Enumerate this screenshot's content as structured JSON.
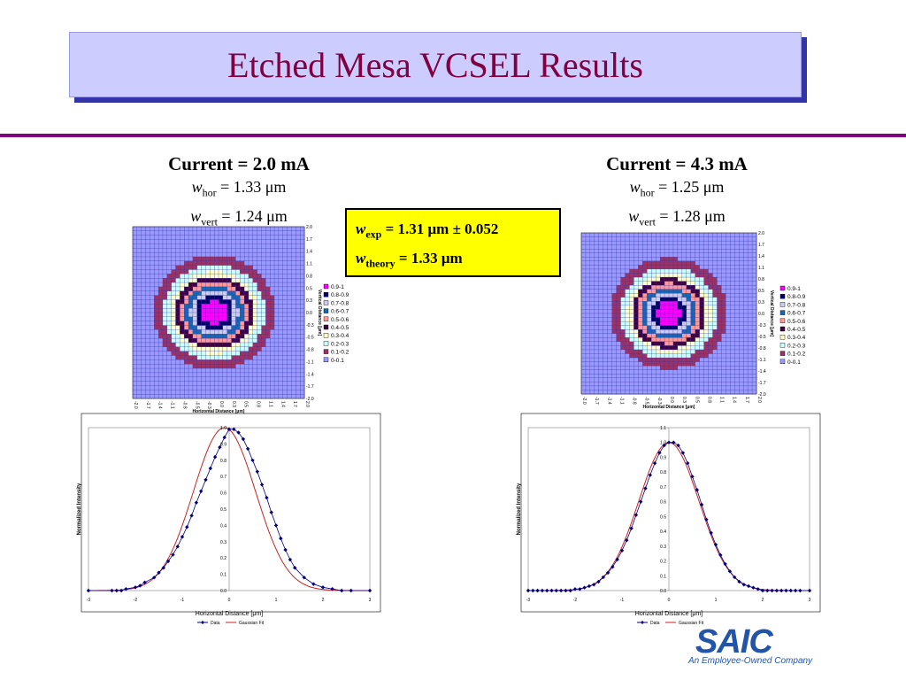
{
  "slide": {
    "title": "Etched Mesa VCSEL Results",
    "left": {
      "current": "Current = 2.0 mA",
      "w_hor": "= 1.33 μm",
      "w_vert": "= 1.24 μm"
    },
    "right": {
      "current": "Current = 4.3 mA",
      "w_hor": "= 1.25 μm",
      "w_vert": "= 1.28 μm"
    },
    "symbols": {
      "w": "w",
      "hor": "hor",
      "vert": "vert"
    },
    "box": {
      "w": "w",
      "exp_sub": "exp",
      "exp_value": "= 1.31 μm ± 0.052",
      "theory_sub": "theory",
      "theory_value": "= 1.33 μm",
      "color": "#ffff00"
    },
    "logo": {
      "name": "SAIC",
      "tagline": "An Employee-Owned Company",
      "color": "#2255aa"
    }
  },
  "chart_data": [
    {
      "type": "heatmap",
      "xlabel": "Horizontal Distance [μm]",
      "ylabel": "Vertical Distance [μm]",
      "x_ticks": [
        "-2.0",
        "-1.7",
        "-1.4",
        "-1.1",
        "-0.8",
        "-0.5",
        "-0.3",
        "0.0",
        "0.3",
        "0.5",
        "0.8",
        "1.1",
        "1.4",
        "1.7",
        "2.0"
      ],
      "y_ticks": [
        "2.0",
        "1.7",
        "1.4",
        "1.1",
        "0.8",
        "0.5",
        "0.3",
        "0.0",
        "-0.3",
        "-0.5",
        "-0.8",
        "-1.1",
        "-1.4",
        "-1.7",
        "-2.0"
      ],
      "legend": [
        "0.9-1",
        "0.8-0.9",
        "0.7-0.8",
        "0.6-0.7",
        "0.5-0.6",
        "0.4-0.5",
        "0.3-0.4",
        "0.2-0.3",
        "0.1-0.2",
        "0-0.1"
      ],
      "colors": [
        "#ff00ff",
        "#000066",
        "#ccccee",
        "#1a66b3",
        "#ff9999",
        "#400040",
        "#ffffcc",
        "#ccffff",
        "#993366",
        "#9999ff"
      ],
      "center": [
        -0.1,
        0.0
      ],
      "sigma_x": 0.665,
      "sigma_y": 0.62
    },
    {
      "type": "heatmap",
      "xlabel": "Horizontal Distance [μm]",
      "ylabel": "Vertical Distance [μm]",
      "x_ticks": [
        "-2.0",
        "-1.7",
        "-1.4",
        "-1.1",
        "-0.8",
        "-0.5",
        "-0.3",
        "0.0",
        "0.3",
        "0.5",
        "0.8",
        "1.1",
        "1.4",
        "1.7",
        "2.0"
      ],
      "y_ticks": [
        "2.0",
        "1.7",
        "1.4",
        "1.1",
        "0.8",
        "0.5",
        "0.3",
        "0.0",
        "-0.3",
        "-0.5",
        "-0.8",
        "-1.1",
        "-1.4",
        "-1.7",
        "-2.0"
      ],
      "legend": [
        "0.9-1",
        "0.8-0.9",
        "0.7-0.8",
        "0.6-0.7",
        "0.5-0.6",
        "0.4-0.5",
        "0.3-0.4",
        "0.2-0.3",
        "0.1-0.2",
        "0-0.1"
      ],
      "colors": [
        "#ff00ff",
        "#000066",
        "#ccccee",
        "#1a66b3",
        "#ff9999",
        "#400040",
        "#ffffcc",
        "#ccffff",
        "#993366",
        "#9999ff"
      ],
      "center": [
        0.0,
        0.0
      ],
      "sigma_x": 0.625,
      "sigma_y": 0.64
    },
    {
      "type": "line",
      "xlabel": "Horizontal Distance [μm]",
      "ylabel": "Normalized Intensity",
      "xlim": [
        -3,
        3
      ],
      "ylim": [
        0,
        1.0
      ],
      "x_ticks": [
        -3,
        -2,
        -1,
        0,
        1,
        2,
        3
      ],
      "y_ticks": [
        "0.0",
        "0.1",
        "0.2",
        "0.3",
        "0.4",
        "0.5",
        "0.6",
        "0.7",
        "0.8",
        "0.9",
        "1.0"
      ],
      "legend": [
        "Data",
        "Gaussian Fit"
      ],
      "series": [
        {
          "name": "Data",
          "color": "#000080",
          "marker": "diamond",
          "x": [
            -3.0,
            -2.5,
            -2.4,
            -2.3,
            -2.2,
            -2.0,
            -1.9,
            -1.8,
            -1.6,
            -1.5,
            -1.4,
            -1.3,
            -1.2,
            -1.1,
            -1.0,
            -0.9,
            -0.8,
            -0.7,
            -0.6,
            -0.5,
            -0.4,
            -0.3,
            -0.2,
            -0.1,
            0.0,
            0.1,
            0.2,
            0.3,
            0.4,
            0.5,
            0.6,
            0.7,
            0.8,
            0.9,
            1.0,
            1.1,
            1.2,
            1.3,
            1.4,
            1.6,
            1.8,
            2.0,
            2.2,
            2.4,
            2.6,
            3.0
          ],
          "y": [
            0.0,
            0.0,
            0.0,
            0.0,
            0.01,
            0.02,
            0.03,
            0.05,
            0.08,
            0.11,
            0.14,
            0.18,
            0.22,
            0.27,
            0.33,
            0.39,
            0.46,
            0.54,
            0.61,
            0.68,
            0.75,
            0.82,
            0.88,
            0.94,
            0.99,
            0.99,
            0.97,
            0.93,
            0.87,
            0.8,
            0.73,
            0.65,
            0.57,
            0.48,
            0.4,
            0.32,
            0.25,
            0.19,
            0.14,
            0.08,
            0.04,
            0.02,
            0.01,
            0.0,
            0.0,
            0.0
          ]
        },
        {
          "name": "Gaussian Fit",
          "color": "#cc2222",
          "x0": -0.1,
          "sigma": 0.665,
          "amplitude": 1.0
        }
      ]
    },
    {
      "type": "line",
      "xlabel": "Horizontal Distance [μm]",
      "ylabel": "Normalized Intensity",
      "xlim": [
        -3,
        3
      ],
      "ylim": [
        0,
        1.1
      ],
      "x_ticks": [
        -3,
        -2,
        -1,
        0,
        1,
        2,
        3
      ],
      "y_ticks": [
        "0.0",
        "0.1",
        "0.2",
        "0.3",
        "0.4",
        "0.5",
        "0.6",
        "0.7",
        "0.8",
        "0.9",
        "1.0",
        "1.1"
      ],
      "legend": [
        "Data",
        "Gaussian Fit"
      ],
      "series": [
        {
          "name": "Data",
          "color": "#000080",
          "marker": "diamond",
          "x": [
            -3.0,
            -2.9,
            -2.8,
            -2.7,
            -2.6,
            -2.5,
            -2.4,
            -2.3,
            -2.2,
            -2.1,
            -2.0,
            -1.9,
            -1.8,
            -1.7,
            -1.6,
            -1.5,
            -1.4,
            -1.3,
            -1.2,
            -1.1,
            -1.0,
            -0.9,
            -0.8,
            -0.7,
            -0.6,
            -0.5,
            -0.4,
            -0.3,
            -0.2,
            -0.1,
            0.0,
            0.1,
            0.2,
            0.3,
            0.4,
            0.5,
            0.6,
            0.7,
            0.8,
            0.9,
            1.0,
            1.1,
            1.2,
            1.3,
            1.4,
            1.5,
            1.6,
            1.7,
            1.8,
            1.9,
            2.0,
            2.1,
            2.2,
            2.3,
            2.4,
            2.5,
            2.6,
            2.7,
            2.8,
            3.0
          ],
          "y": [
            0.0,
            0.0,
            0.0,
            0.0,
            0.0,
            0.0,
            0.0,
            0.0,
            0.0,
            0.0,
            0.01,
            0.01,
            0.02,
            0.03,
            0.04,
            0.06,
            0.09,
            0.12,
            0.16,
            0.21,
            0.27,
            0.34,
            0.42,
            0.51,
            0.6,
            0.69,
            0.78,
            0.86,
            0.93,
            0.98,
            1.0,
            1.0,
            0.98,
            0.93,
            0.86,
            0.77,
            0.68,
            0.58,
            0.48,
            0.39,
            0.31,
            0.24,
            0.18,
            0.13,
            0.09,
            0.06,
            0.04,
            0.03,
            0.02,
            0.01,
            0.0,
            0.0,
            0.0,
            0.0,
            0.0,
            0.0,
            0.0,
            0.0,
            0.0,
            0.0
          ]
        },
        {
          "name": "Gaussian Fit",
          "color": "#cc2222",
          "x0": 0.0,
          "sigma": 0.64,
          "amplitude": 1.0
        }
      ]
    }
  ]
}
